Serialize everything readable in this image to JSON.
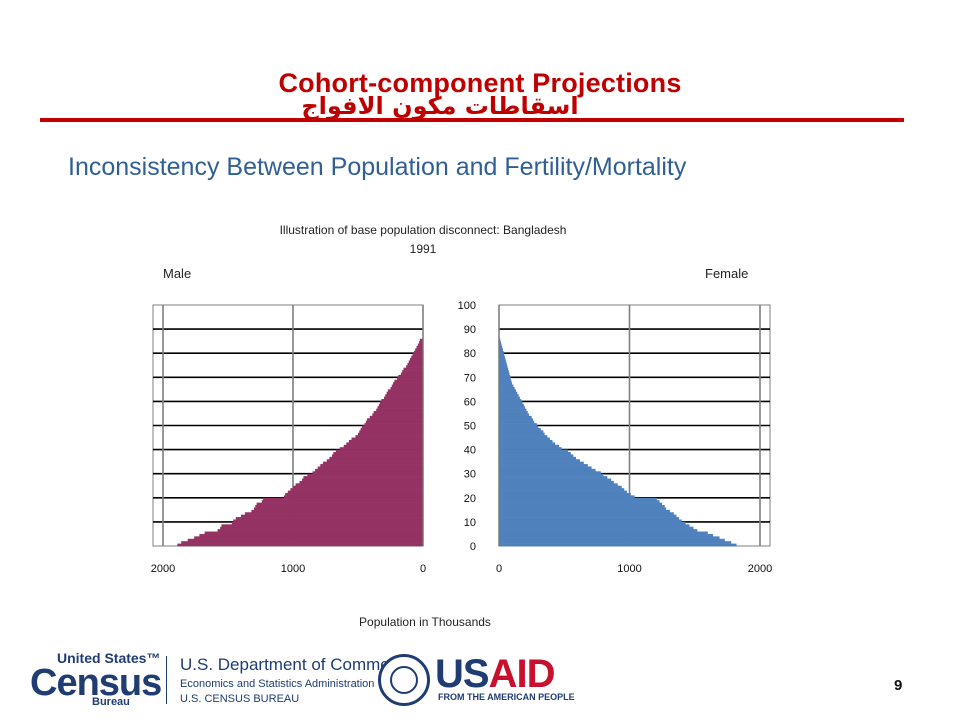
{
  "slide": {
    "title": "Cohort-component Projections",
    "title_arabic": "اسقاطات مكون الافواج",
    "subtitle": "Inconsistency Between Population and Fertility/Mortality",
    "page_number": "9",
    "title_color": "#c00000",
    "subtitle_color": "#2f5f95"
  },
  "chart_data": {
    "type": "bar",
    "orientation": "horizontal-population-pyramid",
    "title": "Illustration of base population disconnect: Bangladesh 1991",
    "title_line1": "Illustration of base population disconnect: Bangladesh",
    "title_line2": "1991",
    "xlabel": "Population in Thousands",
    "left_panel_label": "Male",
    "right_panel_label": "Female",
    "male_color": "#943263",
    "female_color": "#4f81bd",
    "xlim": [
      0,
      2000
    ],
    "x_ticks_male": [
      "2000",
      "1000",
      "0"
    ],
    "x_ticks_female": [
      "0",
      "1000",
      "2000"
    ],
    "ylim": [
      0,
      100
    ],
    "y_ticks": [
      "0",
      "10",
      "20",
      "30",
      "40",
      "50",
      "60",
      "70",
      "80",
      "90",
      "100"
    ],
    "grid": true,
    "ages": [
      0,
      1,
      2,
      3,
      4,
      5,
      6,
      7,
      8,
      9,
      10,
      11,
      12,
      13,
      14,
      15,
      16,
      17,
      18,
      19,
      20,
      21,
      22,
      23,
      24,
      25,
      26,
      27,
      28,
      29,
      30,
      31,
      32,
      33,
      34,
      35,
      36,
      37,
      38,
      39,
      40,
      41,
      42,
      43,
      44,
      45,
      46,
      47,
      48,
      49,
      50,
      51,
      52,
      53,
      54,
      55,
      56,
      57,
      58,
      59,
      60,
      61,
      62,
      63,
      64,
      65,
      66,
      67,
      68,
      69,
      70,
      71,
      72,
      73,
      74,
      75,
      76,
      77,
      78,
      79,
      80,
      81,
      82,
      83,
      84,
      85
    ],
    "series": [
      {
        "name": "Male",
        "values": [
          1890,
          1860,
          1810,
          1760,
          1720,
          1680,
          1580,
          1560,
          1550,
          1470,
          1460,
          1440,
          1400,
          1370,
          1320,
          1300,
          1290,
          1280,
          1240,
          1230,
          1070,
          1060,
          1040,
          1020,
          1000,
          980,
          950,
          930,
          920,
          890,
          850,
          830,
          810,
          790,
          770,
          740,
          720,
          700,
          690,
          670,
          640,
          610,
          590,
          570,
          550,
          520,
          500,
          490,
          480,
          470,
          450,
          440,
          430,
          410,
          390,
          380,
          360,
          350,
          340,
          330,
          320,
          300,
          290,
          280,
          270,
          250,
          240,
          230,
          220,
          200,
          190,
          170,
          160,
          150,
          130,
          120,
          110,
          100,
          90,
          80,
          70,
          60,
          50,
          40,
          30,
          25
        ]
      },
      {
        "name": "Female",
        "values": [
          1820,
          1780,
          1730,
          1690,
          1640,
          1600,
          1520,
          1490,
          1460,
          1430,
          1400,
          1380,
          1360,
          1340,
          1310,
          1280,
          1270,
          1250,
          1230,
          1210,
          1040,
          1010,
          980,
          960,
          940,
          910,
          880,
          860,
          830,
          800,
          780,
          740,
          710,
          680,
          650,
          620,
          590,
          570,
          550,
          530,
          480,
          460,
          430,
          410,
          390,
          370,
          350,
          340,
          320,
          300,
          290,
          270,
          260,
          250,
          230,
          220,
          210,
          200,
          190,
          180,
          170,
          160,
          150,
          140,
          130,
          120,
          110,
          100,
          95,
          90,
          85,
          80,
          75,
          70,
          65,
          60,
          55,
          50,
          45,
          40,
          35,
          30,
          25,
          20,
          15,
          10
        ]
      }
    ]
  },
  "logos": {
    "census_top": "United States™",
    "census_word": "Census",
    "census_bureau": "Bureau",
    "doc_line1": "U.S. Department of Commerce",
    "doc_line2": "Economics and Statistics Administration",
    "doc_line3": "U.S. CENSUS BUREAU",
    "usaid_us": "US",
    "usaid_aid": "AID",
    "usaid_tagline": "FROM THE AMERICAN PEOPLE"
  }
}
